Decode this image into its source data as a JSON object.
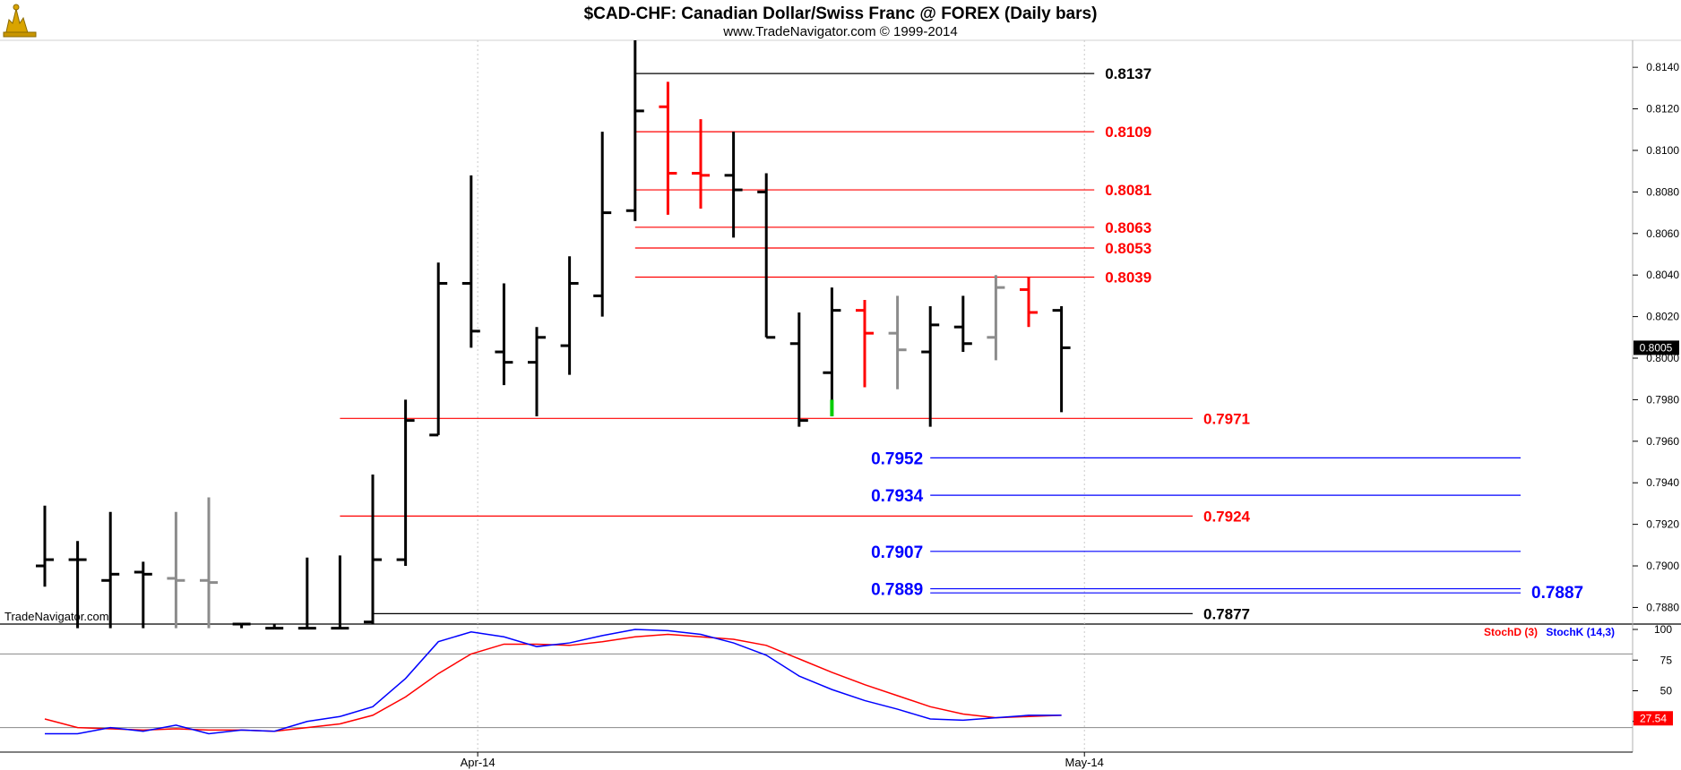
{
  "header": {
    "title": "$CAD-CHF:  Canadian Dollar/Swiss Franc @ FOREX  (Daily bars)",
    "subtitle": "www.TradeNavigator.com © 1999-2014",
    "watermark": "TradeNavigator.com",
    "logo_icon": "trade-navigator-logo-icon"
  },
  "chart_data": [
    {
      "type": "ohlc",
      "ylim": [
        0.7872,
        0.8153
      ],
      "y_ticks": [
        "0.7880",
        "0.7900",
        "0.7920",
        "0.7940",
        "0.7960",
        "0.7980",
        "0.8000",
        "0.8020",
        "0.8040",
        "0.8060",
        "0.8080",
        "0.8100",
        "0.8120",
        "0.8140"
      ],
      "x_labels": [
        "Apr-14",
        "May-14"
      ],
      "last_price": "0.8005",
      "colors": {
        "black": "#000000",
        "red": "#ff0000",
        "gray": "#8c8c8c",
        "green": "#00cc00",
        "blue": "#0000ff"
      },
      "bars": [
        {
          "open": 0.79,
          "high": 0.7929,
          "low": 0.789,
          "close": 0.7903,
          "color": "black"
        },
        {
          "open": 0.7903,
          "high": 0.7912,
          "low": 0.787,
          "close": 0.7903,
          "color": "black"
        },
        {
          "open": 0.7893,
          "high": 0.7926,
          "low": 0.787,
          "close": 0.7896,
          "color": "black"
        },
        {
          "open": 0.7897,
          "high": 0.7902,
          "low": 0.787,
          "close": 0.7896,
          "color": "black"
        },
        {
          "open": 0.7894,
          "high": 0.7926,
          "low": 0.787,
          "close": 0.7893,
          "color": "gray"
        },
        {
          "open": 0.7893,
          "high": 0.7933,
          "low": 0.787,
          "close": 0.7892,
          "color": "gray"
        },
        {
          "open": 0.7872,
          "high": 0.7872,
          "low": 0.787,
          "close": 0.7872,
          "color": "black"
        },
        {
          "open": 0.787,
          "high": 0.7872,
          "low": 0.787,
          "close": 0.787,
          "color": "black"
        },
        {
          "open": 0.787,
          "high": 0.7904,
          "low": 0.787,
          "close": 0.787,
          "color": "black"
        },
        {
          "open": 0.787,
          "high": 0.7905,
          "low": 0.787,
          "close": 0.787,
          "color": "black"
        },
        {
          "open": 0.7873,
          "high": 0.7944,
          "low": 0.7872,
          "close": 0.7903,
          "color": "black"
        },
        {
          "open": 0.7903,
          "high": 0.798,
          "low": 0.79,
          "close": 0.797,
          "color": "black"
        },
        {
          "open": 0.7963,
          "high": 0.8046,
          "low": 0.7963,
          "close": 0.8036,
          "color": "black"
        },
        {
          "open": 0.8036,
          "high": 0.8088,
          "low": 0.8005,
          "close": 0.8013,
          "color": "black"
        },
        {
          "open": 0.8003,
          "high": 0.8036,
          "low": 0.7987,
          "close": 0.7998,
          "color": "black"
        },
        {
          "open": 0.7998,
          "high": 0.8015,
          "low": 0.7972,
          "close": 0.801,
          "color": "black"
        },
        {
          "open": 0.8006,
          "high": 0.8049,
          "low": 0.7992,
          "close": 0.8036,
          "color": "black"
        },
        {
          "open": 0.803,
          "high": 0.8109,
          "low": 0.802,
          "close": 0.807,
          "color": "black"
        },
        {
          "open": 0.8071,
          "high": 0.8153,
          "low": 0.8066,
          "close": 0.8119,
          "color": "black"
        },
        {
          "open": 0.8121,
          "high": 0.8133,
          "low": 0.8069,
          "close": 0.8089,
          "color": "red"
        },
        {
          "open": 0.8089,
          "high": 0.8115,
          "low": 0.8072,
          "close": 0.8088,
          "color": "red"
        },
        {
          "open": 0.8088,
          "high": 0.8109,
          "low": 0.8058,
          "close": 0.8081,
          "color": "black"
        },
        {
          "open": 0.808,
          "high": 0.8089,
          "low": 0.801,
          "close": 0.801,
          "color": "black"
        },
        {
          "open": 0.8007,
          "high": 0.8022,
          "low": 0.7967,
          "close": 0.797,
          "color": "black"
        },
        {
          "open": 0.7993,
          "high": 0.8034,
          "low": 0.7972,
          "close": 0.8023,
          "color": "black"
        },
        {
          "open": 0.8023,
          "high": 0.8028,
          "low": 0.7986,
          "close": 0.8012,
          "color": "red"
        },
        {
          "open": 0.8012,
          "high": 0.803,
          "low": 0.7985,
          "close": 0.8004,
          "color": "gray"
        },
        {
          "open": 0.8003,
          "high": 0.8025,
          "low": 0.7967,
          "close": 0.8016,
          "color": "black"
        },
        {
          "open": 0.8015,
          "high": 0.803,
          "low": 0.8003,
          "close": 0.8007,
          "color": "black"
        },
        {
          "open": 0.801,
          "high": 0.804,
          "low": 0.7999,
          "close": 0.8034,
          "color": "gray"
        },
        {
          "open": 0.8033,
          "high": 0.8039,
          "low": 0.8015,
          "close": 0.8022,
          "color": "red"
        },
        {
          "open": 0.8023,
          "high": 0.8025,
          "low": 0.7974,
          "close": 0.8005,
          "color": "black"
        }
      ],
      "levels": [
        {
          "value": 0.8137,
          "label": "0.8137",
          "color": "black",
          "from_bar": 18,
          "to_bar": 32,
          "label_at": "line-end"
        },
        {
          "value": 0.8109,
          "label": "0.8109",
          "color": "red",
          "from_bar": 18,
          "to_bar": 32,
          "label_at": "line-end"
        },
        {
          "value": 0.8081,
          "label": "0.8081",
          "color": "red",
          "from_bar": 18,
          "to_bar": 32,
          "label_at": "line-end"
        },
        {
          "value": 0.8063,
          "label": "0.8063",
          "color": "red",
          "from_bar": 18,
          "to_bar": 32,
          "label_at": "line-end"
        },
        {
          "value": 0.8053,
          "label": "0.8053",
          "color": "red",
          "from_bar": 18,
          "to_bar": 32,
          "label_at": "line-end"
        },
        {
          "value": 0.8039,
          "label": "0.8039",
          "color": "red",
          "from_bar": 18,
          "to_bar": 32,
          "label_at": "line-end"
        },
        {
          "value": 0.7971,
          "label": "0.7971",
          "color": "red",
          "from_bar": 9,
          "to_bar": 35,
          "label_at": "line-end"
        },
        {
          "value": 0.7952,
          "label": "0.7952",
          "color": "blue",
          "from_bar": 27,
          "to_bar": 45,
          "label_at": "line-start"
        },
        {
          "value": 0.7934,
          "label": "0.7934",
          "color": "blue",
          "from_bar": 27,
          "to_bar": 45,
          "label_at": "line-start"
        },
        {
          "value": 0.7924,
          "label": "0.7924",
          "color": "red",
          "from_bar": 9,
          "to_bar": 35,
          "label_at": "line-end"
        },
        {
          "value": 0.7907,
          "label": "0.7907",
          "color": "blue",
          "from_bar": 27,
          "to_bar": 45,
          "label_at": "line-start"
        },
        {
          "value": 0.7889,
          "label": "0.7889",
          "color": "blue",
          "from_bar": 27,
          "to_bar": 45,
          "label_at": "line-start"
        },
        {
          "value": 0.7887,
          "label": "0.7887",
          "color": "blue",
          "from_bar": 27,
          "to_bar": 45,
          "label_at": "line-end"
        },
        {
          "value": 0.7877,
          "label": "0.7877",
          "color": "black",
          "from_bar": 10,
          "to_bar": 35,
          "label_at": "line-end"
        }
      ]
    },
    {
      "type": "line",
      "ylim": [
        0,
        100
      ],
      "y_ticks": [
        "25",
        "50",
        "75",
        "100"
      ],
      "ref_lines": [
        80,
        20
      ],
      "last_value": "27.54",
      "legend": [
        {
          "name": "StochD (3)",
          "color": "red"
        },
        {
          "name": "StochK (14,3)",
          "color": "blue"
        }
      ],
      "series": [
        {
          "name": "StochD (3)",
          "color": "red",
          "values": [
            27,
            20,
            19,
            18,
            19,
            18,
            18,
            17,
            20,
            23,
            30,
            45,
            64,
            80,
            88,
            88,
            87,
            90,
            94,
            96,
            94,
            92,
            87,
            76,
            65,
            55,
            46,
            37,
            31,
            28,
            29,
            30
          ]
        },
        {
          "name": "StochK (14,3)",
          "color": "blue",
          "values": [
            15,
            15,
            20,
            17,
            22,
            15,
            18,
            17,
            25,
            29,
            37,
            60,
            90,
            98,
            94,
            86,
            89,
            95,
            100,
            99,
            96,
            89,
            79,
            62,
            51,
            42,
            35,
            27,
            26,
            28,
            30,
            30
          ]
        }
      ]
    }
  ]
}
